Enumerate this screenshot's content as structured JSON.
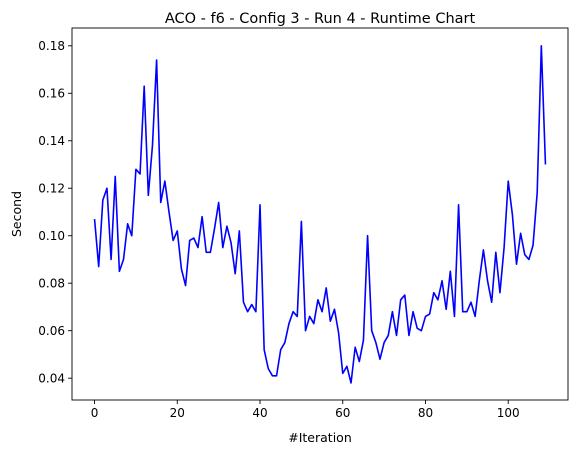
{
  "chart_data": {
    "type": "line",
    "title": "ACO - f6 - Config 3 - Run 4 - Runtime Chart",
    "xlabel": "#Iteration",
    "ylabel": "Second",
    "xlim": [
      -5.45,
      114.45
    ],
    "ylim": [
      0.0308,
      0.1875
    ],
    "x_ticks": [
      0,
      20,
      40,
      60,
      80,
      100
    ],
    "y_ticks": [
      0.04,
      0.06,
      0.08,
      0.1,
      0.12,
      0.14,
      0.16,
      0.18
    ],
    "y_tick_labels": [
      "0.04",
      "0.06",
      "0.08",
      "0.10",
      "0.12",
      "0.14",
      "0.16",
      "0.18"
    ],
    "grid": false,
    "line_color": "#0000ff",
    "series": [
      {
        "x": [
          0,
          1,
          2,
          3,
          4,
          5,
          6,
          7,
          8,
          9,
          10,
          11,
          12,
          13,
          14,
          15,
          16,
          17,
          18,
          19,
          20,
          21,
          22,
          23,
          24,
          25,
          26,
          27,
          28,
          29,
          30,
          31,
          32,
          33,
          34,
          35,
          36,
          37,
          38,
          39,
          40,
          41,
          42,
          43,
          44,
          45,
          46,
          47,
          48,
          49,
          50,
          51,
          52,
          53,
          54,
          55,
          56,
          57,
          58,
          59,
          60,
          61,
          62,
          63,
          64,
          65,
          66,
          67,
          68,
          69,
          70,
          71,
          72,
          73,
          74,
          75,
          76,
          77,
          78,
          79,
          80,
          81,
          82,
          83,
          84,
          85,
          86,
          87,
          88,
          89,
          90,
          91,
          92,
          93,
          94,
          95,
          96,
          97,
          98,
          99,
          100,
          101,
          102,
          103,
          104,
          105,
          106,
          107,
          108,
          109
        ],
        "values": [
          0.107,
          0.087,
          0.115,
          0.12,
          0.09,
          0.125,
          0.085,
          0.09,
          0.105,
          0.1,
          0.128,
          0.126,
          0.163,
          0.117,
          0.138,
          0.174,
          0.114,
          0.123,
          0.11,
          0.098,
          0.102,
          0.086,
          0.079,
          0.098,
          0.099,
          0.095,
          0.108,
          0.093,
          0.093,
          0.103,
          0.114,
          0.095,
          0.104,
          0.097,
          0.084,
          0.102,
          0.072,
          0.068,
          0.071,
          0.068,
          0.113,
          0.052,
          0.044,
          0.041,
          0.041,
          0.052,
          0.055,
          0.063,
          0.068,
          0.066,
          0.106,
          0.06,
          0.066,
          0.063,
          0.073,
          0.068,
          0.078,
          0.064,
          0.069,
          0.059,
          0.042,
          0.045,
          0.038,
          0.053,
          0.047,
          0.056,
          0.1,
          0.06,
          0.055,
          0.048,
          0.055,
          0.058,
          0.068,
          0.058,
          0.073,
          0.075,
          0.058,
          0.068,
          0.061,
          0.06,
          0.066,
          0.067,
          0.076,
          0.073,
          0.081,
          0.069,
          0.085,
          0.066,
          0.113,
          0.068,
          0.068,
          0.072,
          0.066,
          0.081,
          0.094,
          0.081,
          0.072,
          0.093,
          0.076,
          0.095,
          0.123,
          0.109,
          0.088,
          0.101,
          0.092,
          0.09,
          0.096,
          0.118,
          0.18,
          0.13
        ]
      }
    ]
  }
}
